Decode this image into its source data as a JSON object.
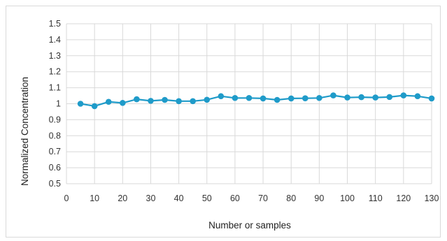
{
  "chart_data": {
    "type": "line",
    "title": "",
    "xlabel": "Number or samples",
    "ylabel": "Normalized Concentration",
    "xlim": [
      0,
      130
    ],
    "ylim": [
      0.5,
      1.5
    ],
    "x_ticks": [
      "0",
      "10",
      "20",
      "30",
      "40",
      "50",
      "60",
      "70",
      "80",
      "90",
      "100",
      "110",
      "120",
      "130"
    ],
    "y_ticks": [
      "0.5",
      "0.6",
      "0.7",
      "0.8",
      "0.9",
      "1",
      "1.1",
      "1.2",
      "1.3",
      "1.4",
      "1.5"
    ],
    "grid": true,
    "legend": "none",
    "series": [
      {
        "color": "#1f9bc9",
        "marker": "circle",
        "x": [
          5,
          10,
          15,
          20,
          25,
          30,
          35,
          40,
          45,
          50,
          55,
          60,
          65,
          70,
          75,
          80,
          85,
          90,
          95,
          100,
          105,
          110,
          115,
          120,
          125,
          130
        ],
        "y": [
          1.0,
          0.985,
          1.012,
          1.005,
          1.028,
          1.018,
          1.024,
          1.016,
          1.016,
          1.025,
          1.047,
          1.036,
          1.036,
          1.033,
          1.024,
          1.033,
          1.034,
          1.036,
          1.052,
          1.039,
          1.041,
          1.039,
          1.042,
          1.052,
          1.047,
          1.033
        ]
      }
    ]
  }
}
